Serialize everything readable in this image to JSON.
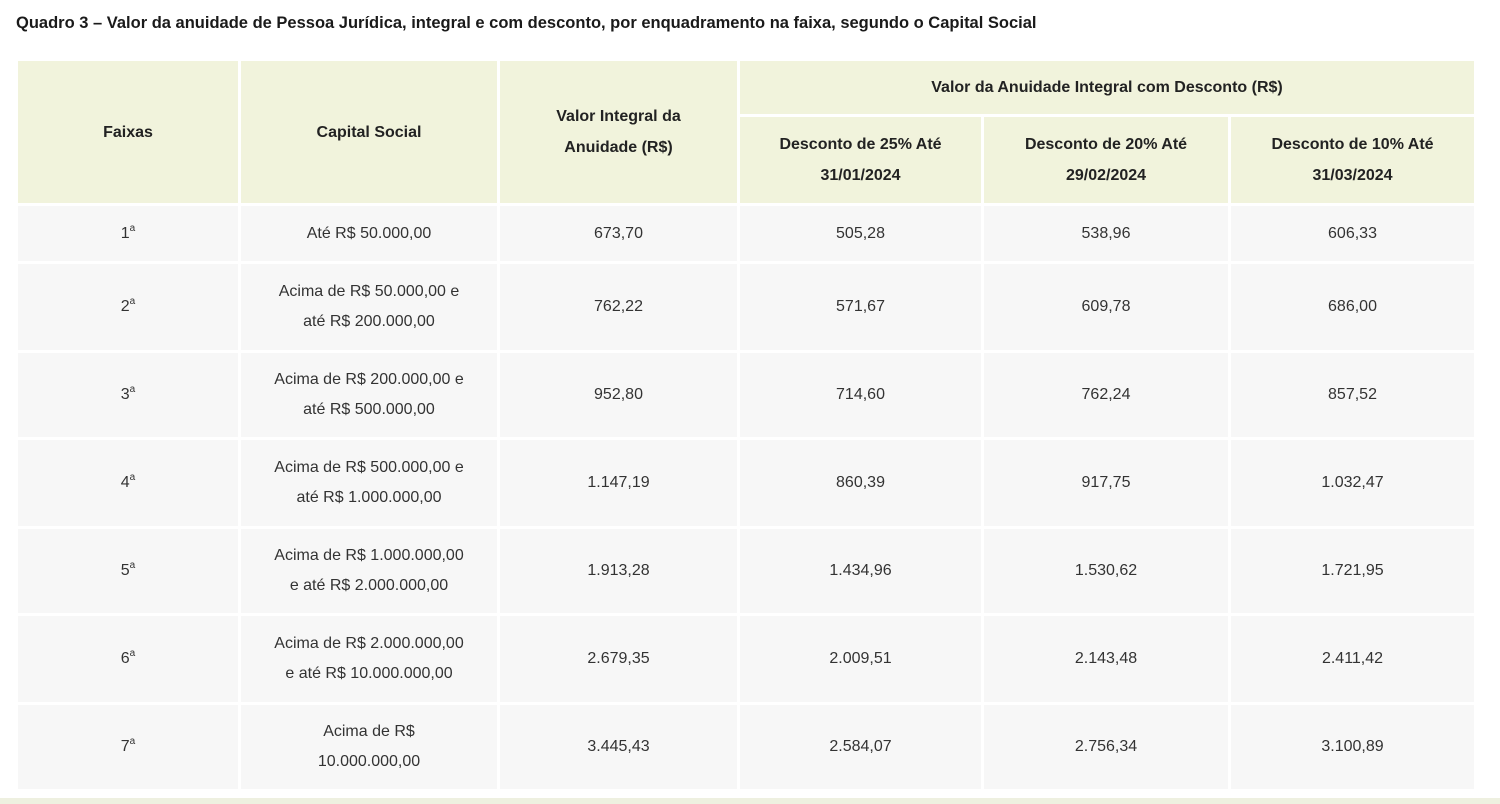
{
  "title": "Quadro 3 – Valor da anuidade de Pessoa Jurídica, integral e com desconto, por enquadramento na faixa, segundo o Capital Social",
  "headers": {
    "faixas": "Faixas",
    "capital": "Capital Social",
    "integral_line1": "Valor Integral da",
    "integral_line2": "Anuidade (R$)",
    "group": "Valor da Anuidade Integral com Desconto (R$)",
    "d25_line1": "Desconto de 25% Até",
    "d25_line2": "31/01/2024",
    "d20_line1": "Desconto de 20% Até",
    "d20_line2": "29/02/2024",
    "d10_line1": "Desconto de 10% Até",
    "d10_line2": "31/03/2024"
  },
  "ordinal_suffix": "a",
  "rows": [
    {
      "faixa": "1",
      "capital_line1": "Até R$ 50.000,00",
      "capital_line2": "",
      "integral": "673,70",
      "d25": "505,28",
      "d20": "538,96",
      "d10": "606,33"
    },
    {
      "faixa": "2",
      "capital_line1": "Acima de R$ 50.000,00 e",
      "capital_line2": "até R$ 200.000,00",
      "integral": "762,22",
      "d25": "571,67",
      "d20": "609,78",
      "d10": "686,00"
    },
    {
      "faixa": "3",
      "capital_line1": "Acima de R$ 200.000,00 e",
      "capital_line2": "até R$ 500.000,00",
      "integral": "952,80",
      "d25": "714,60",
      "d20": "762,24",
      "d10": "857,52"
    },
    {
      "faixa": "4",
      "capital_line1": "Acima de R$ 500.000,00 e",
      "capital_line2": "até R$ 1.000.000,00",
      "integral": "1.147,19",
      "d25": "860,39",
      "d20": "917,75",
      "d10": "1.032,47"
    },
    {
      "faixa": "5",
      "capital_line1": "Acima de R$ 1.000.000,00",
      "capital_line2": "e até R$ 2.000.000,00",
      "integral": "1.913,28",
      "d25": "1.434,96",
      "d20": "1.530,62",
      "d10": "1.721,95"
    },
    {
      "faixa": "6",
      "capital_line1": "Acima de R$ 2.000.000,00",
      "capital_line2": "e até R$ 10.000.000,00",
      "integral": "2.679,35",
      "d25": "2.009,51",
      "d20": "2.143,48",
      "d10": "2.411,42"
    },
    {
      "faixa": "7",
      "capital_line1": "Acima de R$",
      "capital_line2": "10.000.000,00",
      "integral": "3.445,43",
      "d25": "2.584,07",
      "d20": "2.756,34",
      "d10": "3.100,89"
    }
  ]
}
